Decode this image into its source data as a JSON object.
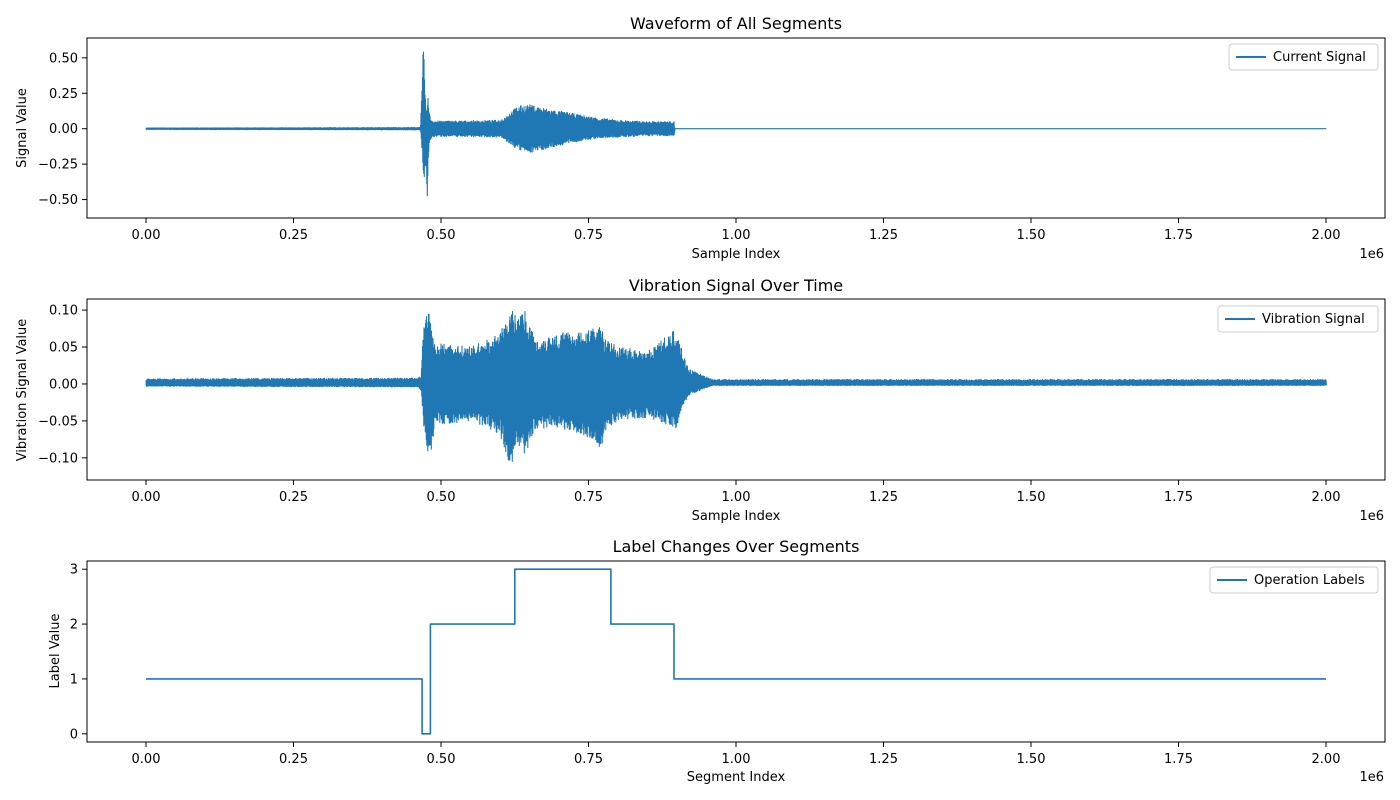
{
  "figure": {
    "line_color": "#1f77b4"
  },
  "chart_data": [
    {
      "type": "line",
      "title": "Waveform of All Segments",
      "xlabel": "Sample Index",
      "ylabel": "Signal Value",
      "x_multiplier_label": "1e6",
      "xlim": [
        -0.1,
        2.1
      ],
      "ylim": [
        -0.63,
        0.64
      ],
      "x_ticks": [
        0.0,
        0.25,
        0.5,
        0.75,
        1.0,
        1.25,
        1.5,
        1.75,
        2.0
      ],
      "x_tick_labels": [
        "0.00",
        "0.25",
        "0.50",
        "0.75",
        "1.00",
        "1.25",
        "1.50",
        "1.75",
        "2.00"
      ],
      "y_ticks": [
        0.5,
        0.25,
        0.0,
        -0.25,
        -0.5
      ],
      "y_tick_labels": [
        "0.50",
        "0.25",
        "0.00",
        "−0.25",
        "−0.50"
      ],
      "legend": {
        "placement": "top-right",
        "entries": [
          "Current Signal"
        ]
      },
      "grid": false,
      "series": [
        {
          "name": "Current Signal",
          "envelope": {
            "x": [
              0.0,
              0.46,
              0.465,
              0.468,
              0.47,
              0.472,
              0.474,
              0.476,
              0.478,
              0.48,
              0.482,
              0.485,
              0.49,
              0.5,
              0.55,
              0.6,
              0.61,
              0.63,
              0.65,
              0.68,
              0.72,
              0.76,
              0.8,
              0.85,
              0.895,
              0.896,
              2.0
            ],
            "upper": [
              0.005,
              0.008,
              0.01,
              0.3,
              0.6,
              0.42,
              0.2,
              0.1,
              0.28,
              0.12,
              0.08,
              0.06,
              0.055,
              0.055,
              0.055,
              0.06,
              0.09,
              0.16,
              0.17,
              0.14,
              0.11,
              0.08,
              0.06,
              0.05,
              0.05,
              0.0,
              0.0
            ],
            "lower": [
              -0.005,
              -0.008,
              -0.01,
              -0.2,
              -0.46,
              -0.4,
              -0.2,
              -0.58,
              -0.26,
              -0.1,
              -0.08,
              -0.06,
              -0.055,
              -0.055,
              -0.055,
              -0.06,
              -0.09,
              -0.15,
              -0.17,
              -0.14,
              -0.1,
              -0.07,
              -0.06,
              -0.05,
              -0.05,
              0.0,
              0.0
            ]
          }
        }
      ]
    },
    {
      "type": "line",
      "title": "Vibration Signal Over Time",
      "xlabel": "Sample Index",
      "ylabel": "Vibration Signal Value",
      "x_multiplier_label": "1e6",
      "xlim": [
        -0.1,
        2.1
      ],
      "ylim": [
        -0.13,
        0.115
      ],
      "x_ticks": [
        0.0,
        0.25,
        0.5,
        0.75,
        1.0,
        1.25,
        1.5,
        1.75,
        2.0
      ],
      "x_tick_labels": [
        "0.00",
        "0.25",
        "0.50",
        "0.75",
        "1.00",
        "1.25",
        "1.50",
        "1.75",
        "2.00"
      ],
      "y_ticks": [
        0.1,
        0.05,
        0.0,
        -0.05,
        -0.1
      ],
      "y_tick_labels": [
        "0.10",
        "0.05",
        "0.00",
        "−0.05",
        "−0.10"
      ],
      "legend": {
        "placement": "top-right",
        "entries": [
          "Vibration Signal"
        ]
      },
      "grid": false,
      "series": [
        {
          "name": "Vibration Signal",
          "envelope": {
            "x": [
              0.0,
              0.46,
              0.466,
              0.47,
              0.48,
              0.49,
              0.5,
              0.55,
              0.58,
              0.6,
              0.62,
              0.63,
              0.64,
              0.66,
              0.7,
              0.74,
              0.77,
              0.78,
              0.8,
              0.85,
              0.9,
              0.91,
              0.92,
              0.95,
              0.96,
              1.0,
              2.0
            ],
            "upper": [
              0.007,
              0.008,
              0.01,
              0.08,
              0.1,
              0.05,
              0.055,
              0.05,
              0.06,
              0.07,
              0.1,
              0.09,
              0.105,
              0.06,
              0.07,
              0.07,
              0.08,
              0.06,
              0.05,
              0.045,
              0.075,
              0.04,
              0.02,
              0.01,
              0.006,
              0.006,
              0.006
            ],
            "lower": [
              -0.003,
              -0.004,
              -0.01,
              -0.06,
              -0.115,
              -0.05,
              -0.055,
              -0.05,
              -0.06,
              -0.07,
              -0.12,
              -0.08,
              -0.1,
              -0.06,
              -0.06,
              -0.07,
              -0.09,
              -0.06,
              -0.05,
              -0.045,
              -0.06,
              -0.03,
              -0.015,
              -0.005,
              -0.002,
              -0.002,
              -0.002
            ]
          }
        }
      ]
    },
    {
      "type": "line",
      "title": "Label Changes Over Segments",
      "xlabel": "Segment Index",
      "ylabel": "Label Value",
      "x_multiplier_label": "1e6",
      "xlim": [
        -0.1,
        2.1
      ],
      "ylim": [
        -0.15,
        3.15
      ],
      "x_ticks": [
        0.0,
        0.25,
        0.5,
        0.75,
        1.0,
        1.25,
        1.5,
        1.75,
        2.0
      ],
      "x_tick_labels": [
        "0.00",
        "0.25",
        "0.50",
        "0.75",
        "1.00",
        "1.25",
        "1.50",
        "1.75",
        "2.00"
      ],
      "y_ticks": [
        3,
        2,
        1,
        0
      ],
      "y_tick_labels": [
        "3",
        "2",
        "1",
        "0"
      ],
      "legend": {
        "placement": "top-right",
        "entries": [
          "Operation Labels"
        ]
      },
      "grid": false,
      "series": [
        {
          "name": "Operation Labels",
          "x": [
            0.0,
            0.468,
            0.468,
            0.482,
            0.482,
            0.625,
            0.625,
            0.788,
            0.788,
            0.895,
            0.895,
            2.0
          ],
          "y": [
            1,
            1,
            0,
            0,
            2,
            2,
            3,
            3,
            2,
            2,
            1,
            1
          ]
        }
      ]
    }
  ]
}
